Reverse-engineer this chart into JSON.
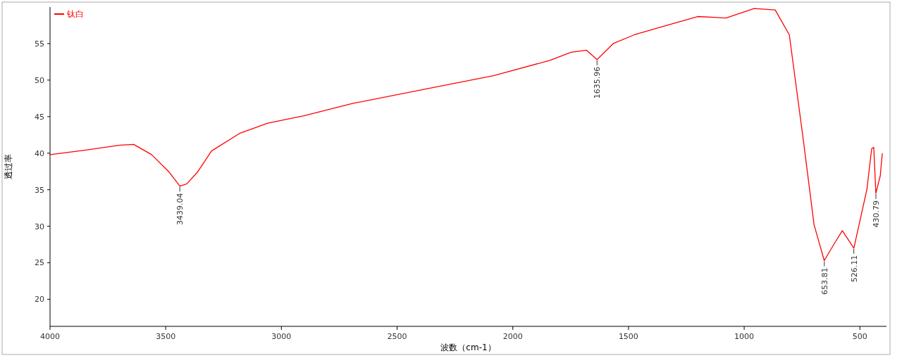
{
  "chart_data": {
    "type": "line",
    "xlabel": "波数（cm-1）",
    "ylabel": "透过率",
    "legend": "top left",
    "series": [
      {
        "name": "钛白",
        "color": "#ff0000",
        "x": [
          4000,
          3851,
          3698,
          3638,
          3561,
          3485,
          3439,
          3409,
          3363,
          3302,
          3181,
          3059,
          2937,
          2906,
          2693,
          2389,
          2084,
          1840,
          1749,
          1682,
          1636,
          1566,
          1475,
          1322,
          1201,
          1079,
          957,
          866,
          805,
          744,
          698,
          654,
          607,
          576,
          526,
          470,
          449,
          440,
          431,
          412,
          403
        ],
        "values": [
          39.8,
          40.4,
          41.1,
          41.2,
          39.8,
          37.4,
          35.5,
          35.8,
          37.4,
          40.3,
          42.7,
          44.1,
          44.9,
          45.1,
          46.8,
          48.7,
          50.6,
          52.7,
          53.8,
          54.1,
          52.8,
          55,
          56.2,
          57.6,
          58.7,
          58.5,
          59.8,
          59.6,
          56.2,
          41.7,
          30.2,
          25.3,
          27.8,
          29.4,
          27,
          35,
          40.6,
          40.8,
          34.5,
          36.9,
          40
        ]
      }
    ],
    "xlim": [
      4000,
      385
    ],
    "ylim": [
      16.3,
      60
    ],
    "xticks": [
      4000,
      3500,
      3000,
      2500,
      2000,
      1500,
      1000,
      500
    ],
    "yticks": [
      20,
      25,
      30,
      35,
      40,
      45,
      50,
      55
    ],
    "annotations": [
      {
        "text": "3439.04",
        "x": 3439.04,
        "y": 35.5
      },
      {
        "text": "1635.96",
        "x": 1635.96,
        "y": 52.8
      },
      {
        "text": "653.81",
        "x": 653.81,
        "y": 25.3
      },
      {
        "text": "526.11",
        "x": 526.11,
        "y": 27
      },
      {
        "text": "430.79",
        "x": 430.79,
        "y": 34.5
      }
    ]
  }
}
